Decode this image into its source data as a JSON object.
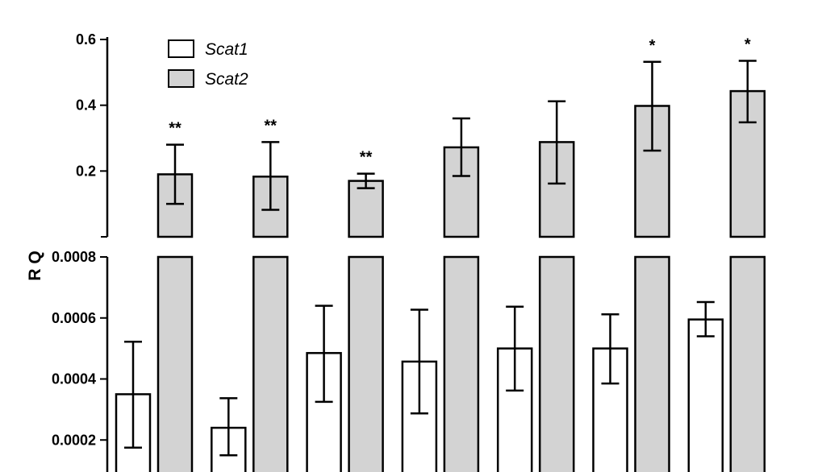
{
  "chart_data": {
    "type": "bar",
    "ylabel": "R Q",
    "axis_break": true,
    "grid": false,
    "legend_placement": "top-left",
    "upper_panel": {
      "ylim": [
        0,
        0.6
      ],
      "ticks": [
        "0.2",
        "0.4",
        "0.6"
      ]
    },
    "lower_panel": {
      "ylim": [
        0,
        0.0008
      ],
      "ticks": [
        "0.0002",
        "0.0004",
        "0.0006",
        "0.0008"
      ]
    },
    "series": [
      {
        "name": "Scat1",
        "color": "#ffffff",
        "panel": "lower",
        "values": [
          0.00035,
          0.00024,
          0.000485,
          0.000457,
          0.0005,
          0.0005,
          0.000595
        ],
        "error_low": [
          0.000175,
          0.00015,
          0.000325,
          0.000287,
          0.000362,
          0.000385,
          0.00054
        ],
        "error_high": [
          0.000522,
          0.000337,
          0.00064,
          0.000627,
          0.000637,
          0.000612,
          0.000652
        ]
      },
      {
        "name": "Scat2",
        "color": "#d3d3d3",
        "panel": "upper",
        "values": [
          0.19,
          0.183,
          0.17,
          0.272,
          0.288,
          0.398,
          0.443
        ],
        "error_low": [
          0.1,
          0.082,
          0.148,
          0.185,
          0.162,
          0.262,
          0.348
        ],
        "error_high": [
          0.28,
          0.288,
          0.192,
          0.36,
          0.412,
          0.532,
          0.535
        ],
        "significance": [
          "**",
          "**",
          "**",
          "",
          "",
          "*",
          "*"
        ]
      }
    ]
  }
}
